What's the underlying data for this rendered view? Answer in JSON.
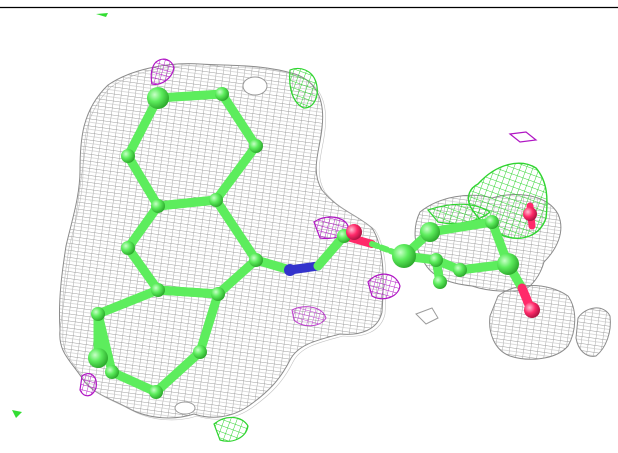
{
  "scene": {
    "background": "#ffffff",
    "frame_line_color": "#000000",
    "colors": {
      "grey_mesh": "#9a9a9a",
      "green_mesh": "#33dd33",
      "magenta_mesh": "#b016c4",
      "carbon": "#5ded5d",
      "oxygen": "#ff2a6a",
      "nitrogen": "#3333cc"
    }
  }
}
